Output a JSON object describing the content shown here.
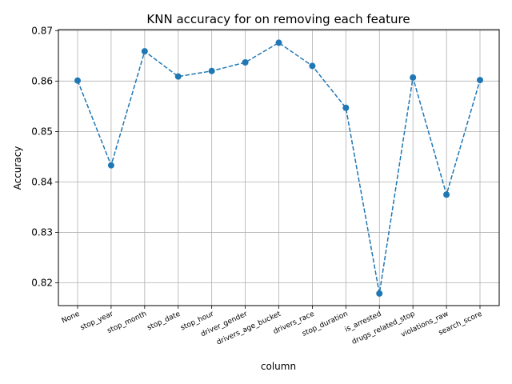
{
  "chart_data": {
    "type": "line",
    "title": "KNN accuracy for on removing each feature",
    "xlabel": "column",
    "ylabel": "Accuracy",
    "categories": [
      "None",
      "stop_year",
      "stop_month",
      "stop_date",
      "stop_hour",
      "driver_gender",
      "drivers_age_bucket",
      "drivers_race",
      "stop_duration",
      "is_arrested",
      "drugs_related_stop",
      "violations_raw",
      "search_score"
    ],
    "series": [
      {
        "values": [
          0.8601,
          0.8433,
          0.8659,
          0.8609,
          0.862,
          0.8637,
          0.8676,
          0.863,
          0.8547,
          0.8179,
          0.8607,
          0.8375,
          0.8602
        ]
      }
    ],
    "ylim": [
      0.8155,
      0.8702
    ],
    "yticks": [
      0.82,
      0.83,
      0.84,
      0.85,
      0.86,
      0.87
    ],
    "ytick_labels": [
      "0.82",
      "0.83",
      "0.84",
      "0.85",
      "0.86",
      "0.87"
    ],
    "grid": true,
    "line_style": "dashed",
    "marker": "circle",
    "color": "#1f77b4"
  }
}
